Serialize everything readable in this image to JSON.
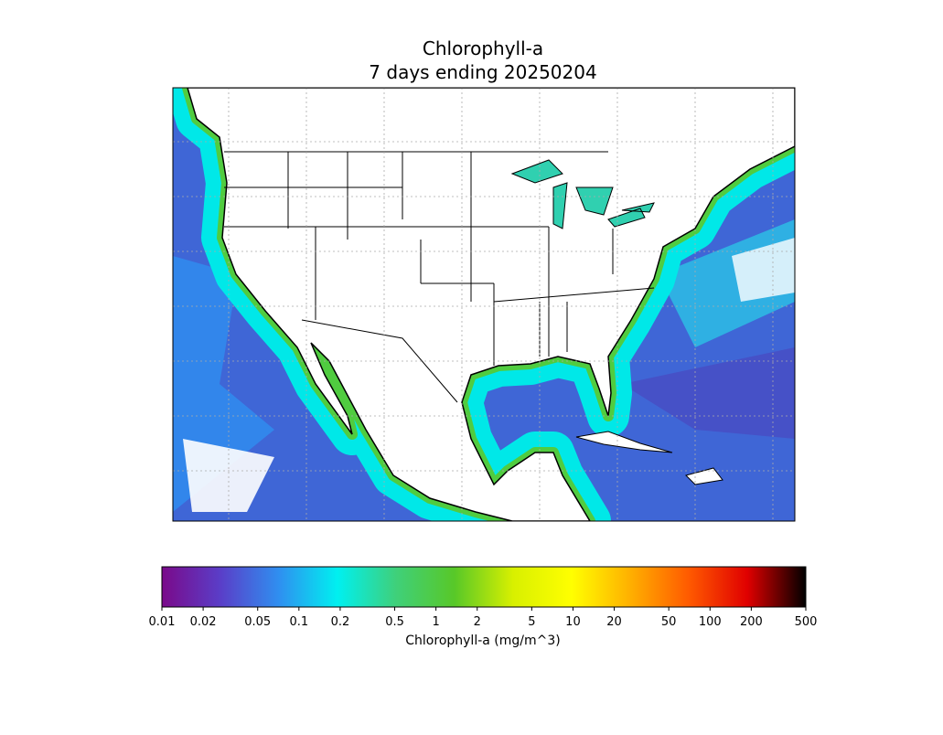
{
  "title": [
    "Chlorophyll-a",
    "7 days ending 20250204"
  ],
  "colorbar": {
    "label": "Chlorophyll-a (mg/m^3)",
    "log_scale": true,
    "lim": [
      0.01,
      500
    ],
    "ticks": [
      0.01,
      0.02,
      0.05,
      0.1,
      0.2,
      0.5,
      1,
      2,
      5,
      10,
      20,
      50,
      100,
      200,
      500
    ],
    "colors": [
      "#7a0a8a",
      "#5a3ec8",
      "#2f8ff0",
      "#00f0f0",
      "#3fd07a",
      "#58c828",
      "#d8f000",
      "#ffff00",
      "#ffb000",
      "#ff5a00",
      "#e00000",
      "#000000"
    ]
  }
}
